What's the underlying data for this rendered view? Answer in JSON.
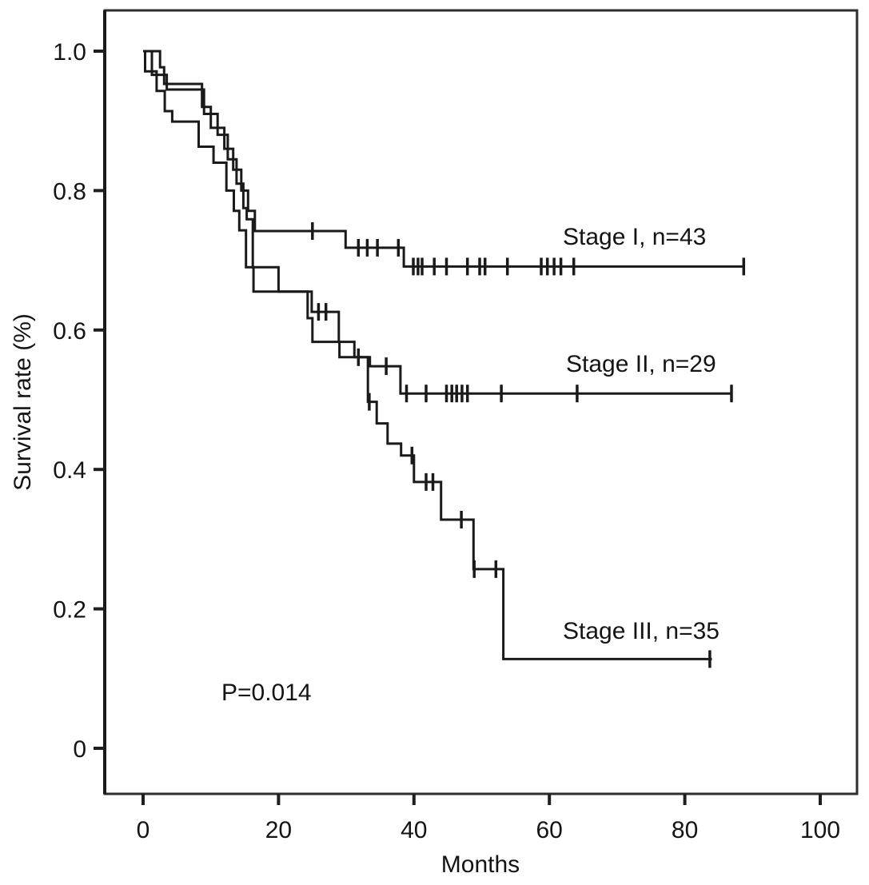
{
  "chart_data": {
    "type": "line",
    "subtype": "kaplan-meier-step",
    "title": "",
    "xlabel": "Months",
    "ylabel": "Survival rate (%)",
    "grid": false,
    "legend_position": "inline-labels",
    "x_axis": {
      "min": 0,
      "max": 100,
      "ticks": [
        0,
        20,
        40,
        60,
        80,
        100
      ]
    },
    "y_axis": {
      "min": 0,
      "max": 1.0,
      "tick_values": [
        0,
        0.2,
        0.4,
        0.6,
        0.8,
        1.0
      ],
      "tick_labels": [
        "0",
        "0.2",
        "0.4",
        "0.6",
        "0.8",
        "1.0"
      ]
    },
    "annotations": [
      {
        "text": "P=0.014",
        "x_month": 11.6,
        "y_survival": 0.081
      }
    ],
    "series": [
      {
        "name": "Stage I, n=43",
        "n": 43,
        "label_anchor": {
          "x_month": 62.0,
          "y_survival": 0.74
        },
        "steps": [
          [
            0,
            1.0
          ],
          [
            2.5,
            0.977
          ],
          [
            3.1,
            0.953
          ],
          [
            8.7,
            0.92
          ],
          [
            10.0,
            0.89
          ],
          [
            12.0,
            0.86
          ],
          [
            13.3,
            0.83
          ],
          [
            14.5,
            0.8
          ],
          [
            15.5,
            0.771
          ],
          [
            16.5,
            0.742
          ],
          [
            29.9,
            0.718
          ],
          [
            38.5,
            0.691
          ]
        ],
        "end_month": 88.9,
        "censor_marks": [
          [
            25.0,
            0.742
          ],
          [
            31.8,
            0.718
          ],
          [
            33.1,
            0.718
          ],
          [
            34.6,
            0.718
          ],
          [
            37.7,
            0.718
          ],
          [
            39.9,
            0.691
          ],
          [
            40.6,
            0.691
          ],
          [
            41.2,
            0.691
          ],
          [
            43.0,
            0.691
          ],
          [
            44.8,
            0.691
          ],
          [
            47.9,
            0.691
          ],
          [
            49.7,
            0.691
          ],
          [
            50.5,
            0.691
          ],
          [
            53.8,
            0.691
          ],
          [
            58.8,
            0.691
          ],
          [
            59.7,
            0.691
          ],
          [
            60.7,
            0.691
          ],
          [
            61.7,
            0.691
          ],
          [
            63.6,
            0.691
          ],
          [
            88.7,
            0.691
          ]
        ]
      },
      {
        "name": "Stage II, n=29",
        "n": 29,
        "label_anchor": {
          "x_month": 62.4,
          "y_survival": 0.553
        },
        "steps": [
          [
            0,
            1.0
          ],
          [
            1.3,
            0.966
          ],
          [
            3.5,
            0.945
          ],
          [
            9.0,
            0.91
          ],
          [
            11.0,
            0.88
          ],
          [
            12.5,
            0.845
          ],
          [
            13.8,
            0.81
          ],
          [
            14.8,
            0.775
          ],
          [
            15.3,
            0.759
          ],
          [
            16.2,
            0.69
          ],
          [
            20.0,
            0.655
          ],
          [
            24.9,
            0.626
          ],
          [
            28.9,
            0.583
          ],
          [
            31.2,
            0.561
          ],
          [
            33.5,
            0.548
          ],
          [
            38.0,
            0.509
          ]
        ],
        "end_month": 86.9,
        "censor_marks": [
          [
            25.9,
            0.626
          ],
          [
            27.0,
            0.626
          ],
          [
            31.8,
            0.561
          ],
          [
            35.9,
            0.548
          ],
          [
            38.9,
            0.509
          ],
          [
            41.8,
            0.509
          ],
          [
            44.8,
            0.509
          ],
          [
            45.6,
            0.509
          ],
          [
            46.3,
            0.509
          ],
          [
            47.1,
            0.509
          ],
          [
            47.9,
            0.509
          ],
          [
            52.9,
            0.509
          ],
          [
            64.1,
            0.509
          ],
          [
            86.9,
            0.509
          ]
        ]
      },
      {
        "name": "Stage III, n=35",
        "n": 35,
        "label_anchor": {
          "x_month": 61.9,
          "y_survival": 0.17
        },
        "steps": [
          [
            0,
            1.0
          ],
          [
            0.3,
            0.971
          ],
          [
            2.0,
            0.943
          ],
          [
            3.2,
            0.914
          ],
          [
            4.3,
            0.899
          ],
          [
            8.2,
            0.863
          ],
          [
            10.4,
            0.84
          ],
          [
            12.3,
            0.8
          ],
          [
            13.4,
            0.771
          ],
          [
            14.2,
            0.743
          ],
          [
            15.2,
            0.69
          ],
          [
            16.3,
            0.655
          ],
          [
            24.3,
            0.617
          ],
          [
            25.0,
            0.583
          ],
          [
            29.0,
            0.561
          ],
          [
            33.2,
            0.497
          ],
          [
            34.5,
            0.466
          ],
          [
            36.1,
            0.437
          ],
          [
            38.1,
            0.42
          ],
          [
            40.0,
            0.382
          ],
          [
            44.0,
            0.328
          ],
          [
            48.8,
            0.257
          ],
          [
            53.2,
            0.128
          ]
        ],
        "end_month": 84.0,
        "censor_marks": [
          [
            33.4,
            0.497
          ],
          [
            39.7,
            0.42
          ],
          [
            41.8,
            0.382
          ],
          [
            42.8,
            0.382
          ],
          [
            47.0,
            0.328
          ],
          [
            48.9,
            0.257
          ],
          [
            52.1,
            0.257
          ],
          [
            83.7,
            0.128
          ]
        ]
      }
    ],
    "p_value": "P=0.014"
  }
}
